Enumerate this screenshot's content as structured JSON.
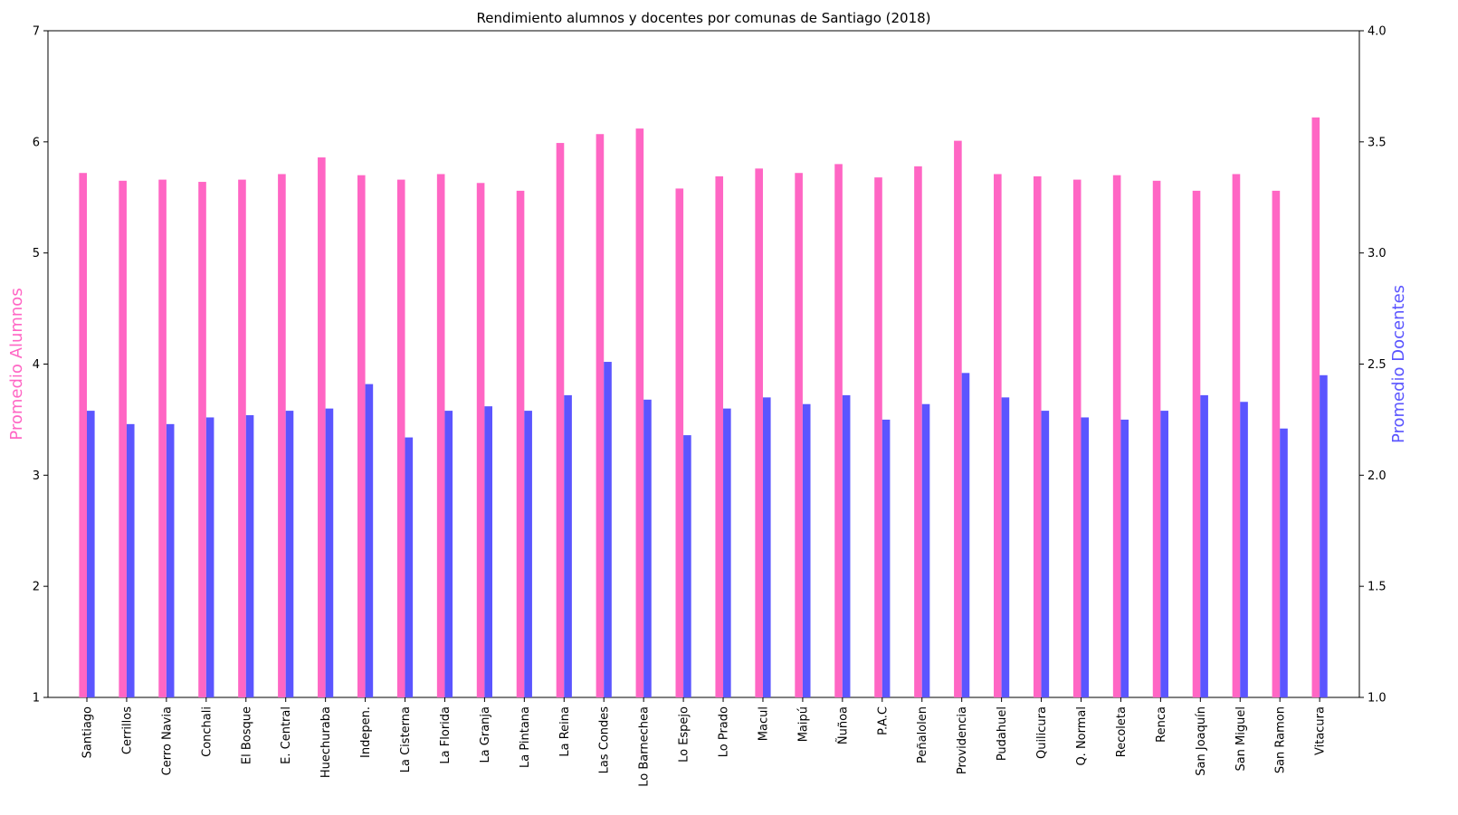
{
  "chart_data": {
    "type": "bar",
    "title": "Rendimiento alumnos y docentes por comunas de Santiago (2018)",
    "xlabel": "",
    "categories": [
      "Santiago",
      "Cerrillos",
      "Cerro Navia",
      "Conchali",
      "El Bosque",
      "E. Central",
      "Huechuraba",
      "Indepen.",
      "La Cisterna",
      "La Florida",
      "La Granja",
      "La Pintana",
      "La Reina",
      "Las Condes",
      "Lo Barnechea",
      "Lo Espejo",
      "Lo Prado",
      "Macul",
      "Maipú",
      "Ñuñoa",
      "P.A.C",
      "Peñalolen",
      "Providencia",
      "Pudahuel",
      "Quilicura",
      "Q. Normal",
      "Recoleta",
      "Renca",
      "San Joaquín",
      "San Miguel",
      "San Ramon",
      "Vitacura"
    ],
    "series": [
      {
        "name": "Promedio Alumnos",
        "axis": "left",
        "color": "#ff66c4",
        "values": [
          5.72,
          5.65,
          5.66,
          5.64,
          5.66,
          5.71,
          5.86,
          5.7,
          5.66,
          5.71,
          5.63,
          5.56,
          5.99,
          6.07,
          6.12,
          5.58,
          5.69,
          5.76,
          5.72,
          5.8,
          5.68,
          5.78,
          6.01,
          5.71,
          5.69,
          5.66,
          5.7,
          5.65,
          5.56,
          5.71,
          5.56,
          6.22
        ]
      },
      {
        "name": "Promedio Docentes",
        "axis": "right",
        "color": "#5b55ff",
        "values": [
          2.29,
          2.23,
          2.23,
          2.26,
          2.27,
          2.29,
          2.3,
          2.41,
          2.17,
          2.29,
          2.31,
          2.29,
          2.36,
          2.51,
          2.34,
          2.18,
          2.3,
          2.35,
          2.32,
          2.36,
          2.25,
          2.32,
          2.46,
          2.35,
          2.29,
          2.26,
          2.25,
          2.29,
          2.36,
          2.33,
          2.21,
          2.45
        ]
      }
    ],
    "y_left": {
      "label": "Promedio Alumnos",
      "color": "#ff66c4",
      "ylim": [
        1,
        7
      ],
      "ticks": [
        "1",
        "2",
        "3",
        "4",
        "5",
        "6",
        "7"
      ]
    },
    "y_right": {
      "label": "Promedio Docentes",
      "color": "#5b55ff",
      "ylim": [
        1.0,
        4.0
      ],
      "ticks": [
        "1.0",
        "1.5",
        "2.0",
        "2.5",
        "3.0",
        "3.5",
        "4.0"
      ]
    },
    "grid": false,
    "legend": "none"
  }
}
